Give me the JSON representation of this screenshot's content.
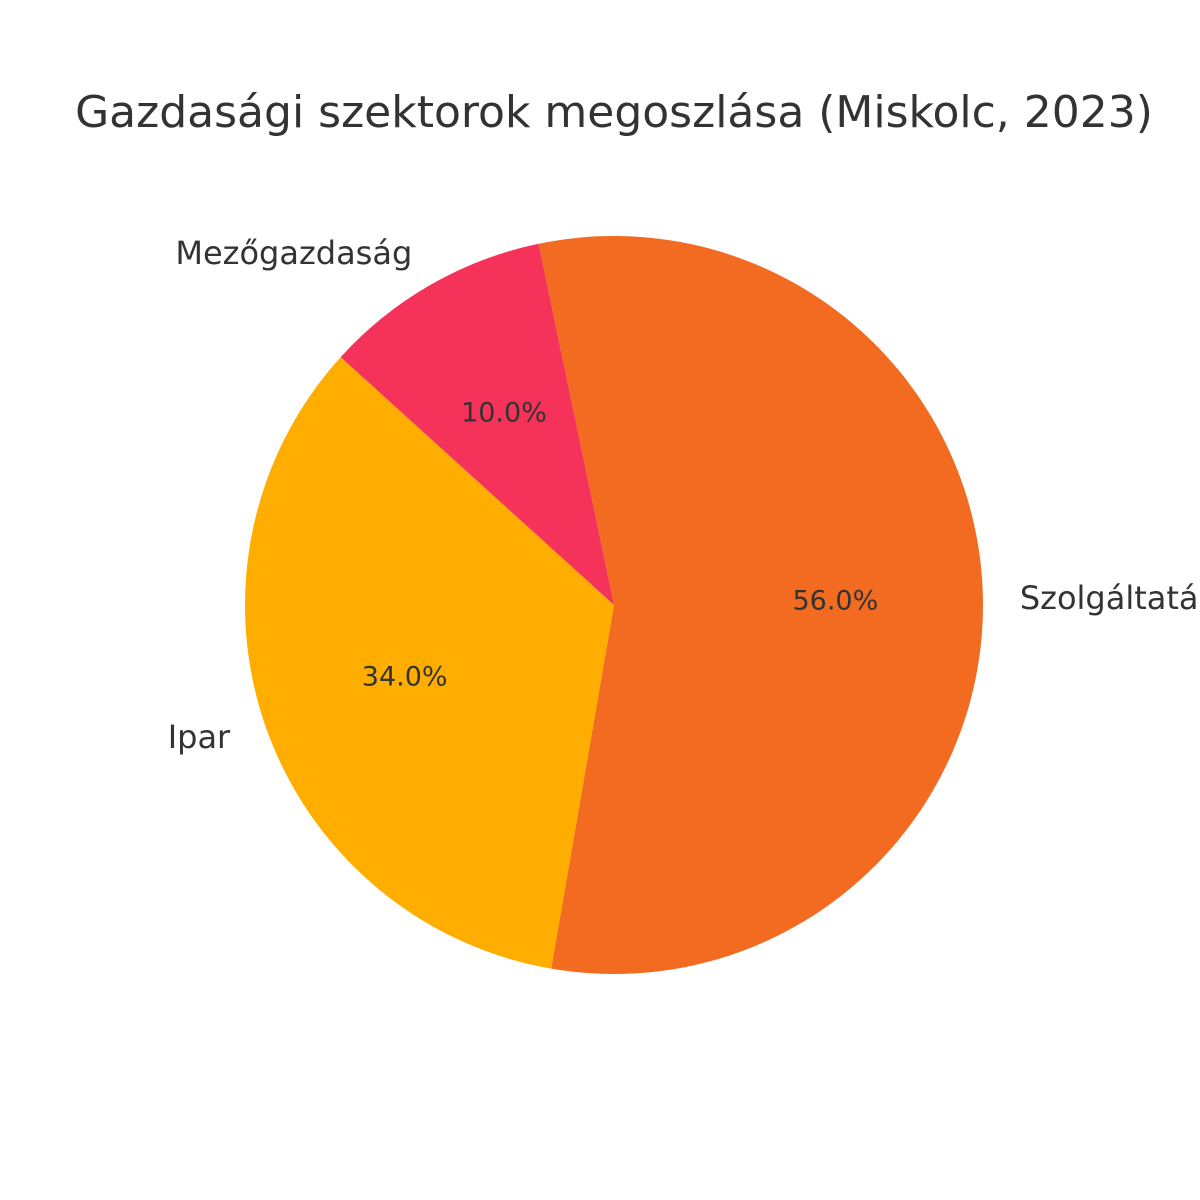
{
  "chart_data": {
    "type": "pie",
    "title": "Gazdasági szektorok megoszlása (Miskolc, 2023)",
    "slices": [
      {
        "label": "Szolgáltatás",
        "value": 56.0,
        "pct_label": "56.0%",
        "color": "#F26B21"
      },
      {
        "label": "Ipar",
        "value": 34.0,
        "pct_label": "34.0%",
        "color": "#FFAE00"
      },
      {
        "label": "Mezőgazdaság",
        "value": 10.0,
        "pct_label": "10.0%",
        "color": "#F5325A"
      }
    ],
    "legend": "none"
  }
}
